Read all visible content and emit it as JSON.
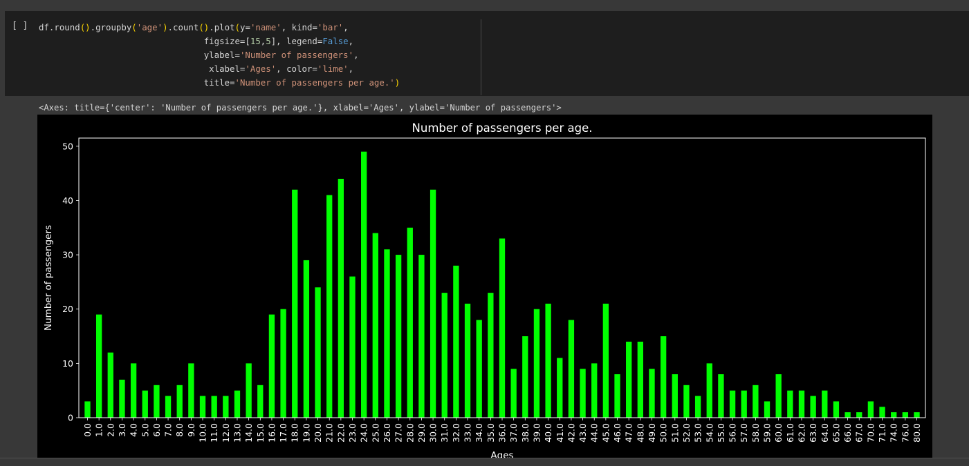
{
  "cell": {
    "run_indicator": "[ ]",
    "code_lines": [
      [
        {
          "t": "df.round",
          "c": ""
        },
        {
          "t": "()",
          "c": "kw-par"
        },
        {
          "t": ".groupby",
          "c": ""
        },
        {
          "t": "(",
          "c": "kw-par"
        },
        {
          "t": "'age'",
          "c": "str"
        },
        {
          "t": ")",
          "c": "kw-par"
        },
        {
          "t": ".count",
          "c": ""
        },
        {
          "t": "()",
          "c": "kw-par"
        },
        {
          "t": ".plot",
          "c": ""
        },
        {
          "t": "(",
          "c": "kw-par"
        },
        {
          "t": "y=",
          "c": ""
        },
        {
          "t": "'name'",
          "c": "str"
        },
        {
          "t": ", kind=",
          "c": ""
        },
        {
          "t": "'bar'",
          "c": "str"
        },
        {
          "t": ",",
          "c": ""
        }
      ],
      [
        {
          "t": "                                figsize=[",
          "c": ""
        },
        {
          "t": "15",
          "c": "num"
        },
        {
          "t": ",",
          "c": ""
        },
        {
          "t": "5",
          "c": "num"
        },
        {
          "t": "], legend=",
          "c": ""
        },
        {
          "t": "False",
          "c": "bool"
        },
        {
          "t": ",",
          "c": ""
        }
      ],
      [
        {
          "t": "                                ylabel=",
          "c": ""
        },
        {
          "t": "'Number of passengers'",
          "c": "str"
        },
        {
          "t": ",",
          "c": ""
        }
      ],
      [
        {
          "t": "                                 xlabel=",
          "c": ""
        },
        {
          "t": "'Ages'",
          "c": "str"
        },
        {
          "t": ", color=",
          "c": ""
        },
        {
          "t": "'lime'",
          "c": "str"
        },
        {
          "t": ",",
          "c": ""
        }
      ],
      [
        {
          "t": "                                title=",
          "c": ""
        },
        {
          "t": "'Number of passengers per age.'",
          "c": "str"
        },
        {
          "t": ")",
          "c": "kw-par"
        }
      ]
    ]
  },
  "output": {
    "repr_text": "<Axes: title={'center': 'Number of passengers per age.'}, xlabel='Ages', ylabel='Number of passengers'>"
  },
  "chart_data": {
    "type": "bar",
    "title": "Number of passengers per age.",
    "xlabel": "Ages",
    "ylabel": "Number of passengers",
    "ylim": [
      0,
      51.5
    ],
    "yticks": [
      0,
      10,
      20,
      30,
      40,
      50
    ],
    "color": "#00ff00",
    "legend": false,
    "grid": false,
    "categories": [
      "0.0",
      "1.0",
      "2.0",
      "3.0",
      "4.0",
      "5.0",
      "6.0",
      "7.0",
      "8.0",
      "9.0",
      "10.0",
      "11.0",
      "12.0",
      "13.0",
      "14.0",
      "15.0",
      "16.0",
      "17.0",
      "18.0",
      "19.0",
      "20.0",
      "21.0",
      "22.0",
      "23.0",
      "24.0",
      "25.0",
      "26.0",
      "27.0",
      "28.0",
      "29.0",
      "30.0",
      "31.0",
      "32.0",
      "33.0",
      "34.0",
      "35.0",
      "36.0",
      "37.0",
      "38.0",
      "39.0",
      "40.0",
      "41.0",
      "42.0",
      "43.0",
      "44.0",
      "45.0",
      "46.0",
      "47.0",
      "48.0",
      "49.0",
      "50.0",
      "51.0",
      "52.0",
      "53.0",
      "54.0",
      "55.0",
      "56.0",
      "57.0",
      "58.0",
      "59.0",
      "60.0",
      "61.0",
      "62.0",
      "63.0",
      "64.0",
      "65.0",
      "66.0",
      "67.0",
      "70.0",
      "71.0",
      "74.0",
      "76.0",
      "80.0"
    ],
    "values": [
      3,
      19,
      12,
      7,
      10,
      5,
      6,
      4,
      6,
      10,
      4,
      4,
      4,
      5,
      10,
      6,
      19,
      20,
      42,
      29,
      24,
      41,
      44,
      26,
      49,
      34,
      31,
      30,
      35,
      30,
      42,
      23,
      28,
      21,
      18,
      23,
      33,
      9,
      15,
      20,
      21,
      11,
      18,
      9,
      10,
      21,
      8,
      14,
      14,
      9,
      15,
      8,
      6,
      4,
      10,
      8,
      5,
      5,
      6,
      3,
      8,
      5,
      5,
      4,
      5,
      3,
      1,
      1,
      3,
      2,
      1,
      1,
      1
    ]
  }
}
